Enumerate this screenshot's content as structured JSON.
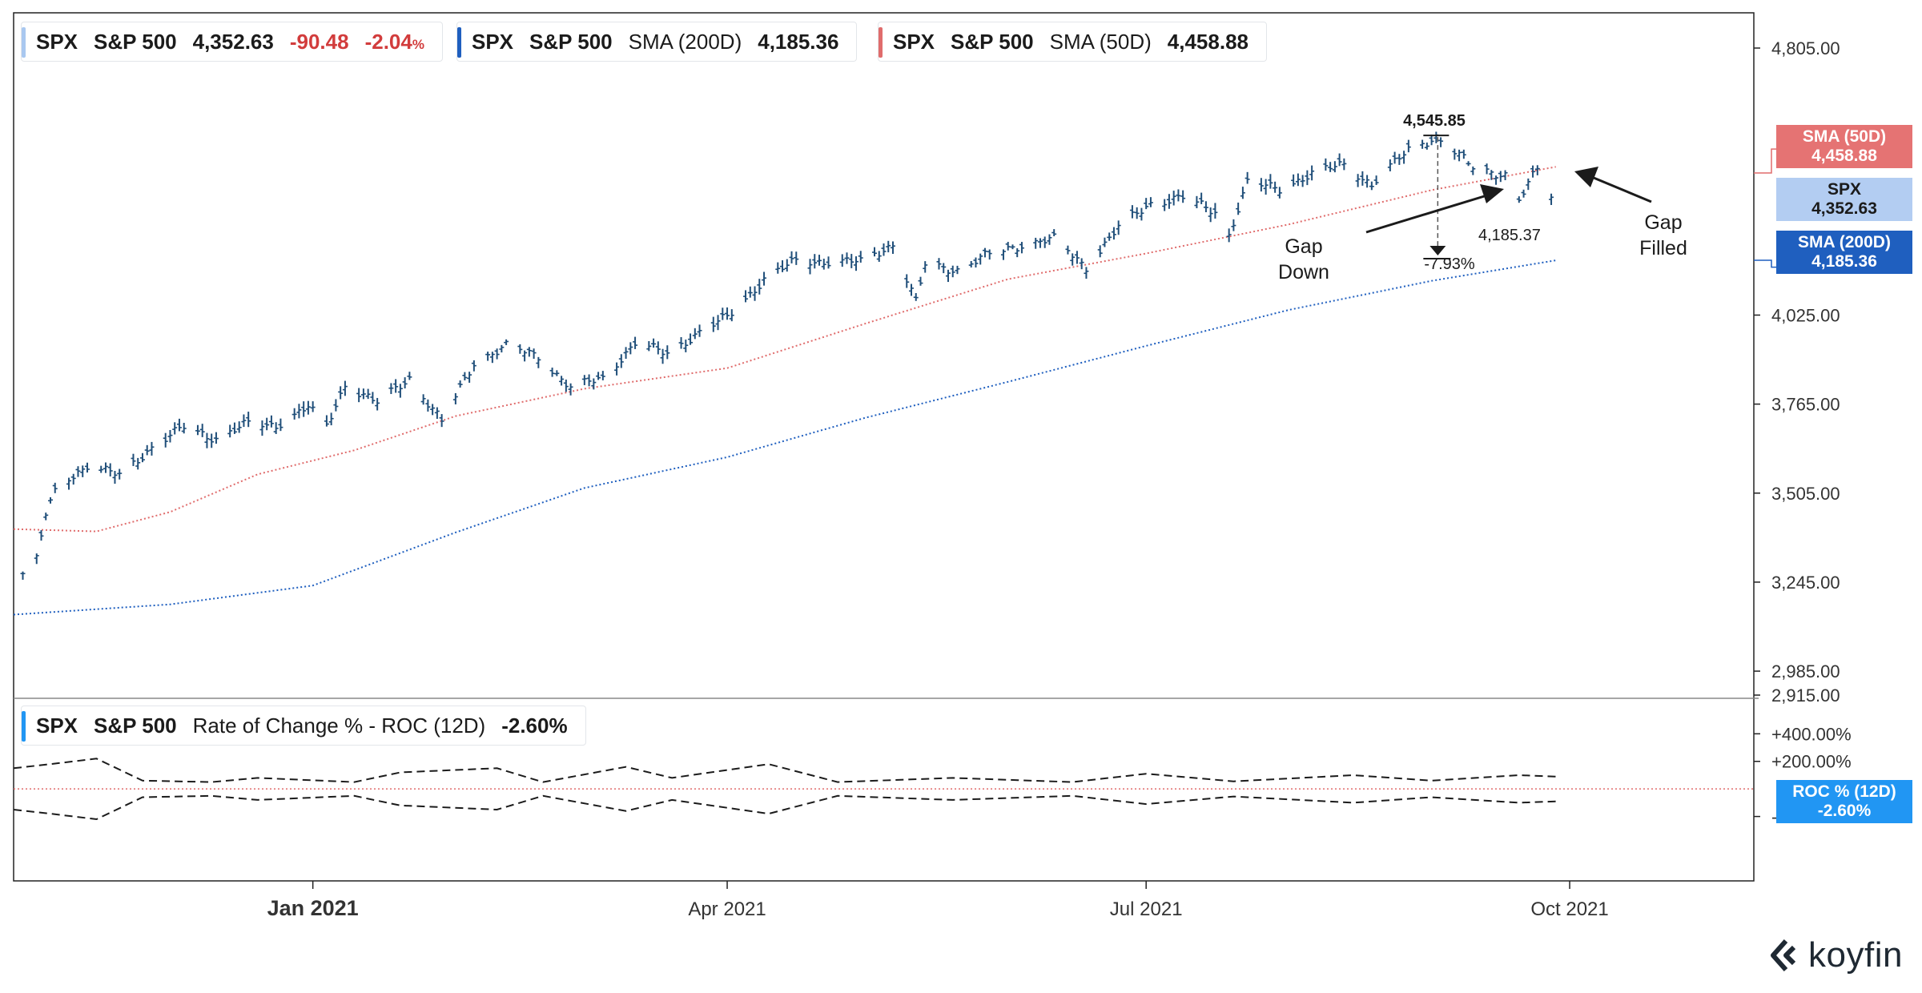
{
  "legends": {
    "spx": {
      "symbol": "SPX",
      "name": "S&P 500",
      "value": "4,352.63",
      "change": "-90.48",
      "change_pct": "-2.04",
      "pct_sign": "%",
      "color": "#a9c8f0"
    },
    "sma200": {
      "symbol": "SPX",
      "name": "S&P 500",
      "indicator": "SMA (200D)",
      "value": "4,185.36",
      "color": "#1f5fbf"
    },
    "sma50": {
      "symbol": "SPX",
      "name": "S&P 500",
      "indicator": "SMA (50D)",
      "value": "4,458.88",
      "color": "#e06c6c"
    },
    "roc": {
      "symbol": "SPX",
      "name": "S&P 500",
      "indicator": "Rate of Change % - ROC (12D)",
      "value": "-2.60%",
      "color": "#2196f3"
    }
  },
  "price_tags": [
    {
      "label": "SMA (50D)",
      "value": "4,458.88",
      "color": "#e57373"
    },
    {
      "label": "SPX",
      "value": "4,352.63",
      "color": "#b3cdf2",
      "text_color": "#1b1b1b"
    },
    {
      "label": "SMA (200D)",
      "value": "4,185.36",
      "color": "#1f5fbf"
    },
    {
      "label": "ROC % (12D)",
      "value": "-2.60%",
      "color": "#2196f3"
    }
  ],
  "annotations": {
    "peak": "4,545.85",
    "low": "4,185.37",
    "drawdown": "-7.93%",
    "gap_down": [
      "Gap",
      "Down"
    ],
    "gap_filled": [
      "Gap",
      "Filled"
    ]
  },
  "brand": {
    "name": "koyfin"
  },
  "chart_data": [
    {
      "type": "line",
      "panel": "price",
      "x_ticks": [
        "Jan 2021",
        "Apr 2021",
        "Jul 2021",
        "Oct 2021"
      ],
      "y_ticks": [
        "4,805.00",
        "4,025.00",
        "3,765.00",
        "3,505.00",
        "3,245.00",
        "2,985.00",
        "2,915.00"
      ],
      "ylim": [
        2915,
        4805
      ],
      "x_range": [
        "2020-10-28",
        "2021-11-10"
      ],
      "series": [
        {
          "name": "SPX",
          "style": "ohlc-bars",
          "color": "#1f4e79",
          "points": [
            [
              "2020-10-30",
              3270
            ],
            [
              "2020-11-02",
              3310
            ],
            [
              "2020-11-04",
              3443
            ],
            [
              "2020-11-06",
              3510
            ],
            [
              "2020-11-09",
              3550
            ],
            [
              "2020-11-13",
              3585
            ],
            [
              "2020-11-20",
              3557
            ],
            [
              "2020-11-27",
              3638
            ],
            [
              "2020-12-04",
              3699
            ],
            [
              "2020-12-11",
              3663
            ],
            [
              "2020-12-18",
              3709
            ],
            [
              "2020-12-24",
              3703
            ],
            [
              "2020-12-31",
              3756
            ],
            [
              "2021-01-04",
              3700
            ],
            [
              "2021-01-08",
              3824
            ],
            [
              "2021-01-15",
              3768
            ],
            [
              "2021-01-22",
              3841
            ],
            [
              "2021-01-29",
              3714
            ],
            [
              "2021-02-05",
              3886
            ],
            [
              "2021-02-12",
              3934
            ],
            [
              "2021-02-19",
              3906
            ],
            [
              "2021-02-26",
              3811
            ],
            [
              "2021-03-05",
              3842
            ],
            [
              "2021-03-12",
              3943
            ],
            [
              "2021-03-19",
              3913
            ],
            [
              "2021-03-26",
              3974
            ],
            [
              "2021-04-01",
              4020
            ],
            [
              "2021-04-09",
              4128
            ],
            [
              "2021-04-16",
              4185
            ],
            [
              "2021-04-23",
              4180
            ],
            [
              "2021-04-30",
              4181
            ],
            [
              "2021-05-07",
              4232
            ],
            [
              "2021-05-12",
              4063
            ],
            [
              "2021-05-14",
              4173
            ],
            [
              "2021-05-21",
              4156
            ],
            [
              "2021-05-28",
              4204
            ],
            [
              "2021-06-04",
              4230
            ],
            [
              "2021-06-11",
              4247
            ],
            [
              "2021-06-18",
              4166
            ],
            [
              "2021-06-25",
              4281
            ],
            [
              "2021-07-02",
              4352
            ],
            [
              "2021-07-09",
              4369
            ],
            [
              "2021-07-16",
              4327
            ],
            [
              "2021-07-19",
              4258
            ],
            [
              "2021-07-23",
              4412
            ],
            [
              "2021-07-30",
              4395
            ],
            [
              "2021-08-06",
              4436
            ],
            [
              "2021-08-13",
              4468
            ],
            [
              "2021-08-19",
              4405
            ],
            [
              "2021-08-27",
              4509
            ],
            [
              "2021-09-02",
              4545
            ],
            [
              "2021-09-10",
              4458
            ],
            [
              "2021-09-17",
              4433
            ],
            [
              "2021-09-20",
              4358
            ],
            [
              "2021-09-24",
              4455
            ],
            [
              "2021-09-28",
              4352
            ]
          ]
        },
        {
          "name": "SMA (50D)",
          "style": "dotted",
          "color": "#e06c6c",
          "points": [
            [
              "2020-10-28",
              3400
            ],
            [
              "2020-11-15",
              3393
            ],
            [
              "2020-12-01",
              3450
            ],
            [
              "2020-12-20",
              3560
            ],
            [
              "2021-01-10",
              3630
            ],
            [
              "2021-02-01",
              3730
            ],
            [
              "2021-03-01",
              3810
            ],
            [
              "2021-04-01",
              3870
            ],
            [
              "2021-05-01",
              4000
            ],
            [
              "2021-06-01",
              4130
            ],
            [
              "2021-07-01",
              4205
            ],
            [
              "2021-08-01",
              4290
            ],
            [
              "2021-09-01",
              4390
            ],
            [
              "2021-09-28",
              4458
            ]
          ]
        },
        {
          "name": "SMA (200D)",
          "style": "dotted",
          "color": "#1f5fbf",
          "points": [
            [
              "2020-10-28",
              3150
            ],
            [
              "2020-12-01",
              3180
            ],
            [
              "2021-01-01",
              3235
            ],
            [
              "2021-02-01",
              3390
            ],
            [
              "2021-03-01",
              3520
            ],
            [
              "2021-04-01",
              3610
            ],
            [
              "2021-05-01",
              3725
            ],
            [
              "2021-06-01",
              3830
            ],
            [
              "2021-07-01",
              3935
            ],
            [
              "2021-08-01",
              4040
            ],
            [
              "2021-09-01",
              4125
            ],
            [
              "2021-09-28",
              4185
            ]
          ]
        }
      ]
    },
    {
      "type": "line",
      "panel": "roc",
      "y_ticks": [
        "+400.00%",
        "+200.00%",
        "-200.00%"
      ],
      "ylim": [
        -400,
        460
      ],
      "series": [
        {
          "name": "ROC (12D)",
          "style": "dashed-envelope",
          "color": "#1b1b1b",
          "points": [
            [
              "2020-10-28",
              150
            ],
            [
              "2020-11-05",
              180
            ],
            [
              "2020-11-15",
              220
            ],
            [
              "2020-11-25",
              60
            ],
            [
              "2020-12-10",
              50
            ],
            [
              "2020-12-20",
              80
            ],
            [
              "2021-01-10",
              50
            ],
            [
              "2021-01-20",
              120
            ],
            [
              "2021-02-10",
              150
            ],
            [
              "2021-02-20",
              50
            ],
            [
              "2021-03-10",
              160
            ],
            [
              "2021-03-20",
              80
            ],
            [
              "2021-04-10",
              180
            ],
            [
              "2021-04-25",
              50
            ],
            [
              "2021-05-20",
              80
            ],
            [
              "2021-06-15",
              50
            ],
            [
              "2021-07-01",
              110
            ],
            [
              "2021-07-20",
              55
            ],
            [
              "2021-08-15",
              100
            ],
            [
              "2021-09-01",
              60
            ],
            [
              "2021-09-20",
              100
            ],
            [
              "2021-09-28",
              90
            ]
          ]
        }
      ]
    }
  ]
}
